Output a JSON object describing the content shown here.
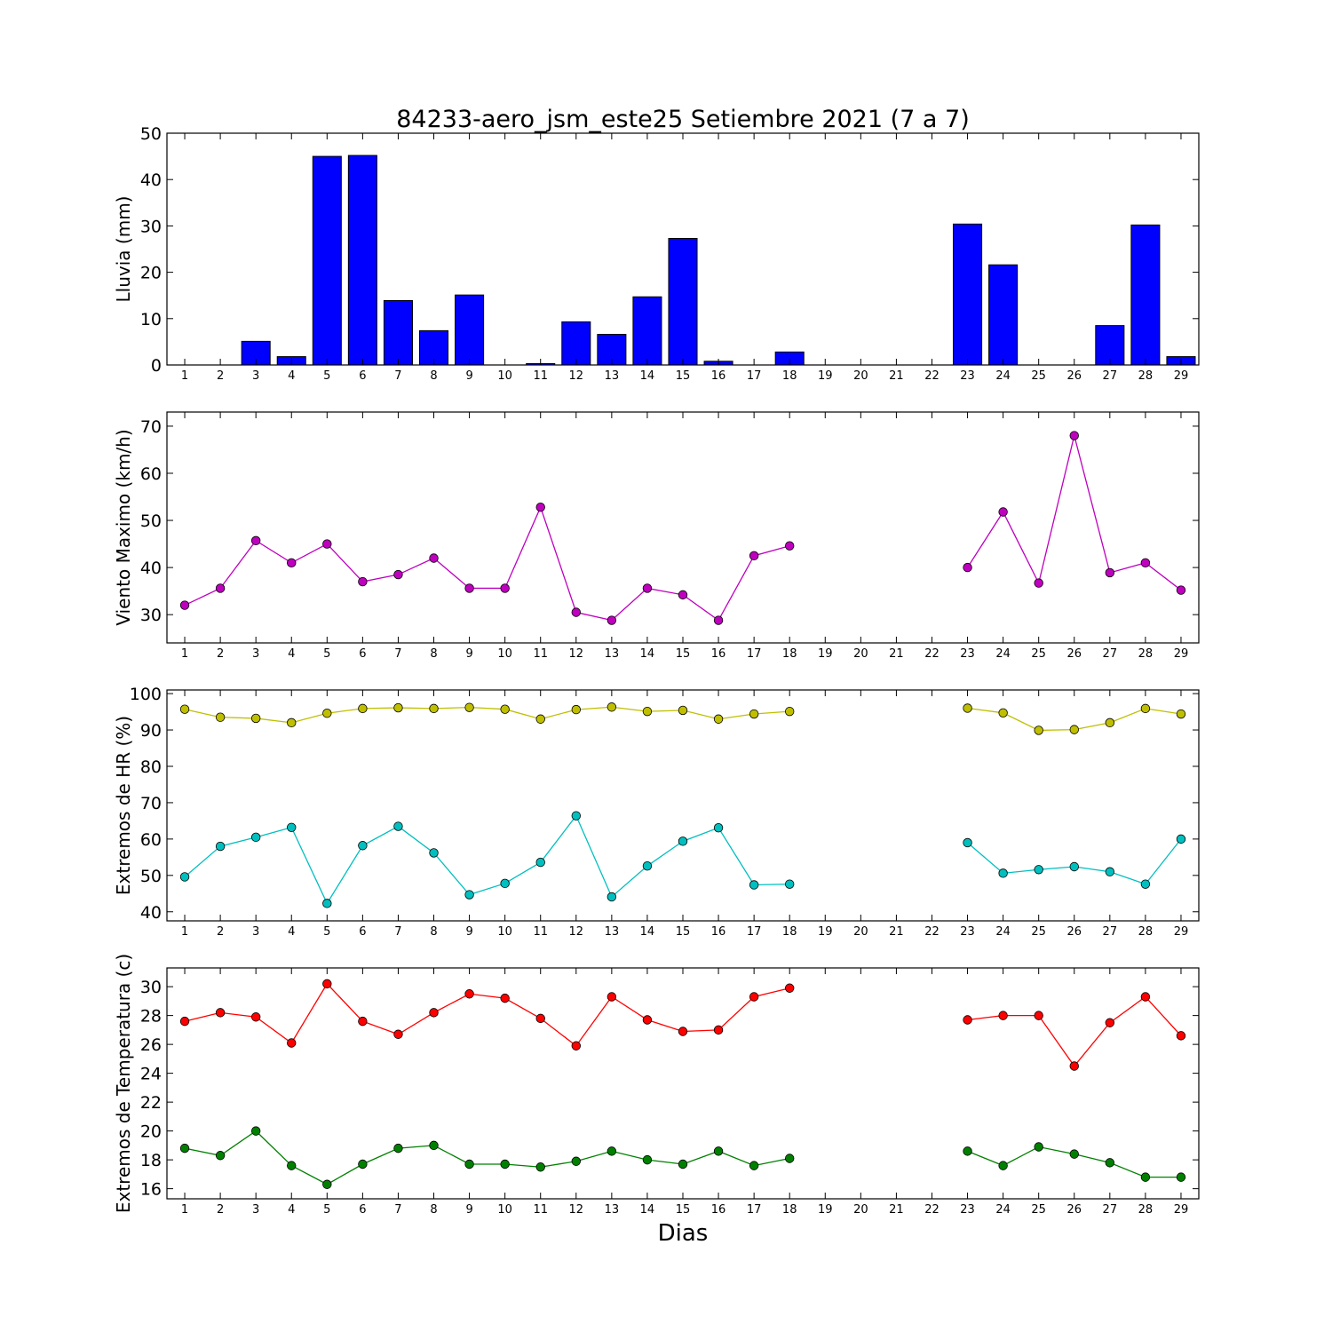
{
  "chart_data": {
    "title": "84233-aero_jsm_este25 Setiembre 2021  (7 a 7)",
    "xlabel": "Dias",
    "days": [
      1,
      2,
      3,
      4,
      5,
      6,
      7,
      8,
      9,
      10,
      11,
      12,
      13,
      14,
      15,
      16,
      17,
      18,
      19,
      20,
      21,
      22,
      23,
      24,
      25,
      26,
      27,
      28,
      29
    ],
    "panels": [
      {
        "type": "bar",
        "ylabel": "Lluvia (mm)",
        "ylim": [
          0,
          50
        ],
        "yticks": [
          0,
          10,
          20,
          30,
          40,
          50
        ],
        "series": [
          {
            "color": "#0000ff",
            "values": [
              0,
              0,
              5.1,
              1.8,
              45,
              45.2,
              13.9,
              7.4,
              15.1,
              0,
              0.3,
              9.3,
              6.6,
              14.7,
              27.3,
              0.8,
              0,
              2.8,
              0,
              0,
              0,
              0,
              30.4,
              21.6,
              0,
              0,
              8.5,
              30.2,
              1.8
            ]
          }
        ]
      },
      {
        "type": "line",
        "ylabel": "Viento Maximo (km/h)",
        "ylim": [
          24,
          73
        ],
        "yticks": [
          30,
          40,
          50,
          60,
          70
        ],
        "series": [
          {
            "color": "#bf00bf",
            "values": [
              32.0,
              35.6,
              45.7,
              41.0,
              45.0,
              37.0,
              38.5,
              42.0,
              35.6,
              35.6,
              52.8,
              30.5,
              28.8,
              35.6,
              34.2,
              28.8,
              42.5,
              44.6,
              null,
              null,
              null,
              null,
              40.0,
              51.8,
              36.7,
              68.0,
              38.9,
              41.0,
              35.2
            ]
          }
        ]
      },
      {
        "type": "line",
        "ylabel": "Extremos de HR (%)",
        "ylim": [
          37.5,
          101
        ],
        "yticks": [
          40,
          50,
          60,
          70,
          80,
          90,
          100
        ],
        "series": [
          {
            "color": "#bfbf00",
            "values": [
              95.7,
              93.5,
              93.2,
              92.0,
              94.6,
              95.9,
              96.1,
              95.9,
              96.2,
              95.7,
              93.0,
              95.6,
              96.3,
              95.1,
              95.4,
              93.0,
              94.4,
              95.1,
              null,
              null,
              null,
              null,
              96.0,
              94.7,
              89.9,
              90.1,
              92.0,
              95.9,
              94.4
            ]
          },
          {
            "color": "#00bfbf",
            "values": [
              49.6,
              58.0,
              60.5,
              63.2,
              42.3,
              58.2,
              63.5,
              56.2,
              44.7,
              47.8,
              53.6,
              66.4,
              44.1,
              52.6,
              59.4,
              63.1,
              47.4,
              47.6,
              null,
              null,
              null,
              null,
              59.0,
              50.6,
              51.6,
              52.4,
              51.0,
              47.6,
              60.0
            ]
          }
        ]
      },
      {
        "type": "line",
        "ylabel": "Extremos de Temperatura (c)",
        "ylim": [
          15.3,
          31.3
        ],
        "yticks": [
          16,
          18,
          20,
          22,
          24,
          26,
          28,
          30
        ],
        "series": [
          {
            "color": "#ff0000",
            "values": [
              27.6,
              28.2,
              27.9,
              26.1,
              30.2,
              27.6,
              26.7,
              28.2,
              29.5,
              29.2,
              27.8,
              25.9,
              29.3,
              27.7,
              26.9,
              27.0,
              29.3,
              29.9,
              null,
              null,
              null,
              null,
              27.7,
              28.0,
              28.0,
              24.5,
              27.5,
              29.3,
              26.6
            ]
          },
          {
            "color": "#008000",
            "values": [
              18.8,
              18.3,
              20.0,
              17.6,
              16.3,
              17.7,
              18.8,
              19.0,
              17.7,
              17.7,
              17.5,
              17.9,
              18.6,
              18.0,
              17.7,
              18.6,
              17.6,
              18.1,
              null,
              null,
              null,
              null,
              18.6,
              17.6,
              18.9,
              18.4,
              17.8,
              16.8,
              16.8
            ]
          }
        ]
      }
    ]
  }
}
